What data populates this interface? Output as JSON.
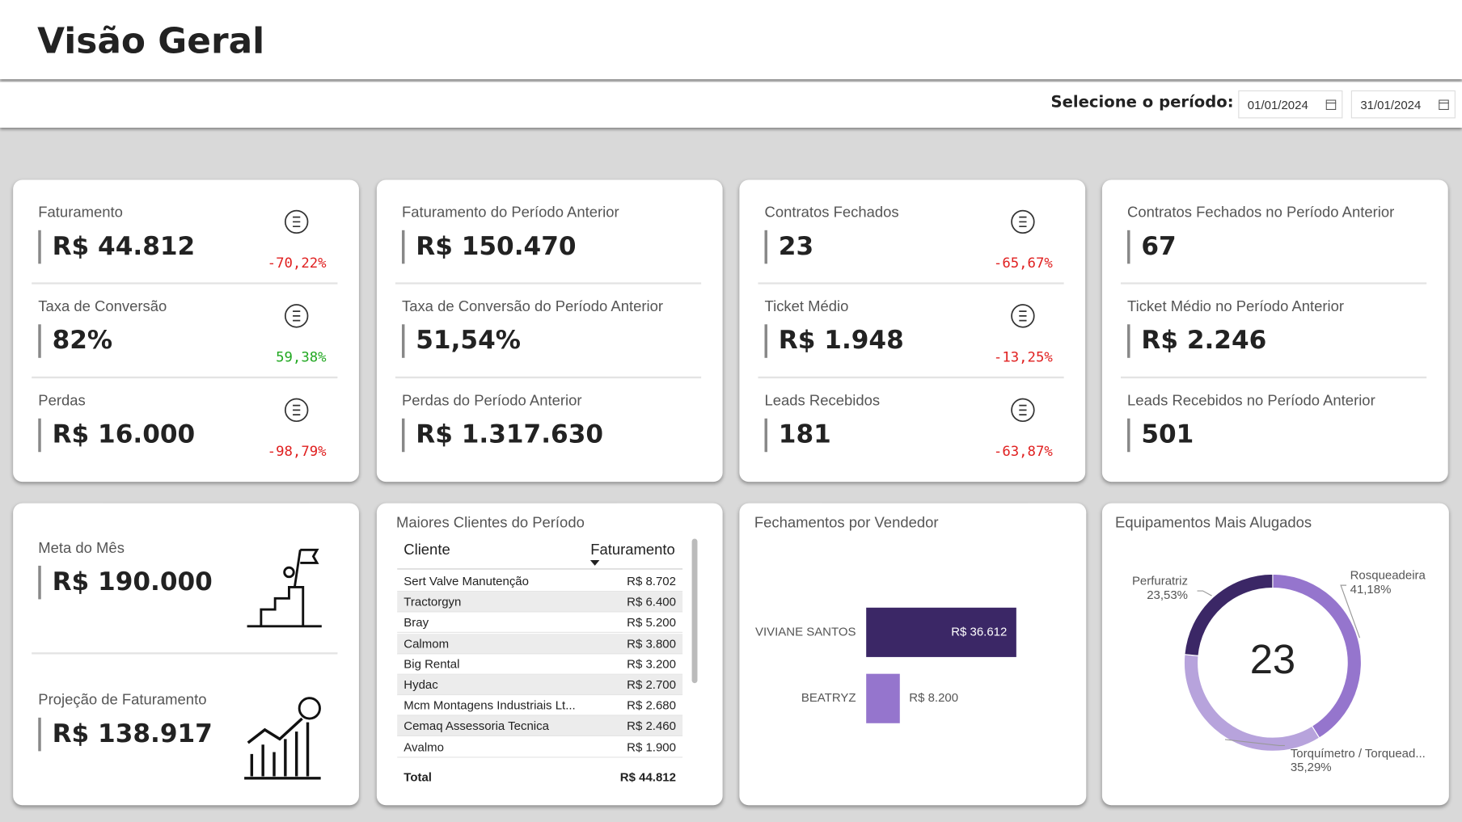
{
  "header": {
    "title": "Visão Geral"
  },
  "period": {
    "label": "Selecione o período:",
    "start": "01/01/2024",
    "end": "31/01/2024"
  },
  "kpi_cards": [
    {
      "items": [
        {
          "label": "Faturamento",
          "value": "R$ 44.812",
          "change": "-70,22%"
        },
        {
          "label": "Taxa de Conversão",
          "value": "82%",
          "change": "59,38%"
        },
        {
          "label": "Perdas",
          "value": "R$ 16.000",
          "change": "-98,79%"
        }
      ]
    },
    {
      "items": [
        {
          "label": "Faturamento do Período Anterior",
          "value": "R$ 150.470"
        },
        {
          "label": "Taxa de Conversão do Período Anterior",
          "value": "51,54%"
        },
        {
          "label": "Perdas do Período Anterior",
          "value": "R$ 1.317.630"
        }
      ]
    },
    {
      "items": [
        {
          "label": "Contratos Fechados",
          "value": "23",
          "change": "-65,67%"
        },
        {
          "label": "Ticket Médio",
          "value": "R$ 1.948",
          "change": "-13,25%"
        },
        {
          "label": "Leads Recebidos",
          "value": "181",
          "change": "-63,87%"
        }
      ]
    },
    {
      "items": [
        {
          "label": "Contratos Fechados no Período Anterior",
          "value": "67"
        },
        {
          "label": "Ticket Médio no Período Anterior",
          "value": "R$ 2.246"
        },
        {
          "label": "Leads Recebidos no Período Anterior",
          "value": "501"
        }
      ]
    }
  ],
  "goals": [
    {
      "label": "Meta do Mês",
      "value": "R$ 190.000"
    },
    {
      "label": "Projeção de Faturamento",
      "value": "R$ 138.917"
    }
  ],
  "clients_table": {
    "title": "Maiores Clientes do Período",
    "columns": [
      "Cliente",
      "Faturamento"
    ],
    "rows": [
      [
        "Sert Valve Manutenção",
        "R$ 8.702"
      ],
      [
        "Tractorgyn",
        "R$ 6.400"
      ],
      [
        "Bray",
        "R$ 5.200"
      ],
      [
        "Calmom",
        "R$ 3.800"
      ],
      [
        "Big Rental",
        "R$ 3.200"
      ],
      [
        "Hydac",
        "R$ 2.700"
      ],
      [
        "Mcm Montagens Industriais Lt...",
        "R$ 2.680"
      ],
      [
        "Cemaq Assessoria Tecnica",
        "R$ 2.460"
      ],
      [
        "Avalmo",
        "R$ 1.900"
      ]
    ],
    "total": [
      "Total",
      "R$ 44.812"
    ]
  },
  "chart_data": [
    {
      "type": "bar",
      "title": "Fechamentos por Vendedor",
      "categories": [
        "VIVIANE SANTOS",
        "BEATRYZ"
      ],
      "values": [
        36612,
        8200
      ],
      "value_labels": [
        "R$ 36.612",
        "R$ 8.200"
      ],
      "colors": [
        "#3b2766",
        "#9575cd"
      ]
    },
    {
      "type": "pie",
      "title": "Equipamentos Mais Alugados",
      "categories": [
        "Rosqueadeira",
        "Torquímetro / Torquead...",
        "Perfuratriz"
      ],
      "values": [
        41.18,
        35.29,
        23.53
      ],
      "value_labels": [
        "41,18%",
        "35,29%",
        "23,53%"
      ],
      "colors": [
        "#9575cd",
        "#b7a3dc",
        "#3b2766"
      ],
      "center_label": "23"
    }
  ]
}
